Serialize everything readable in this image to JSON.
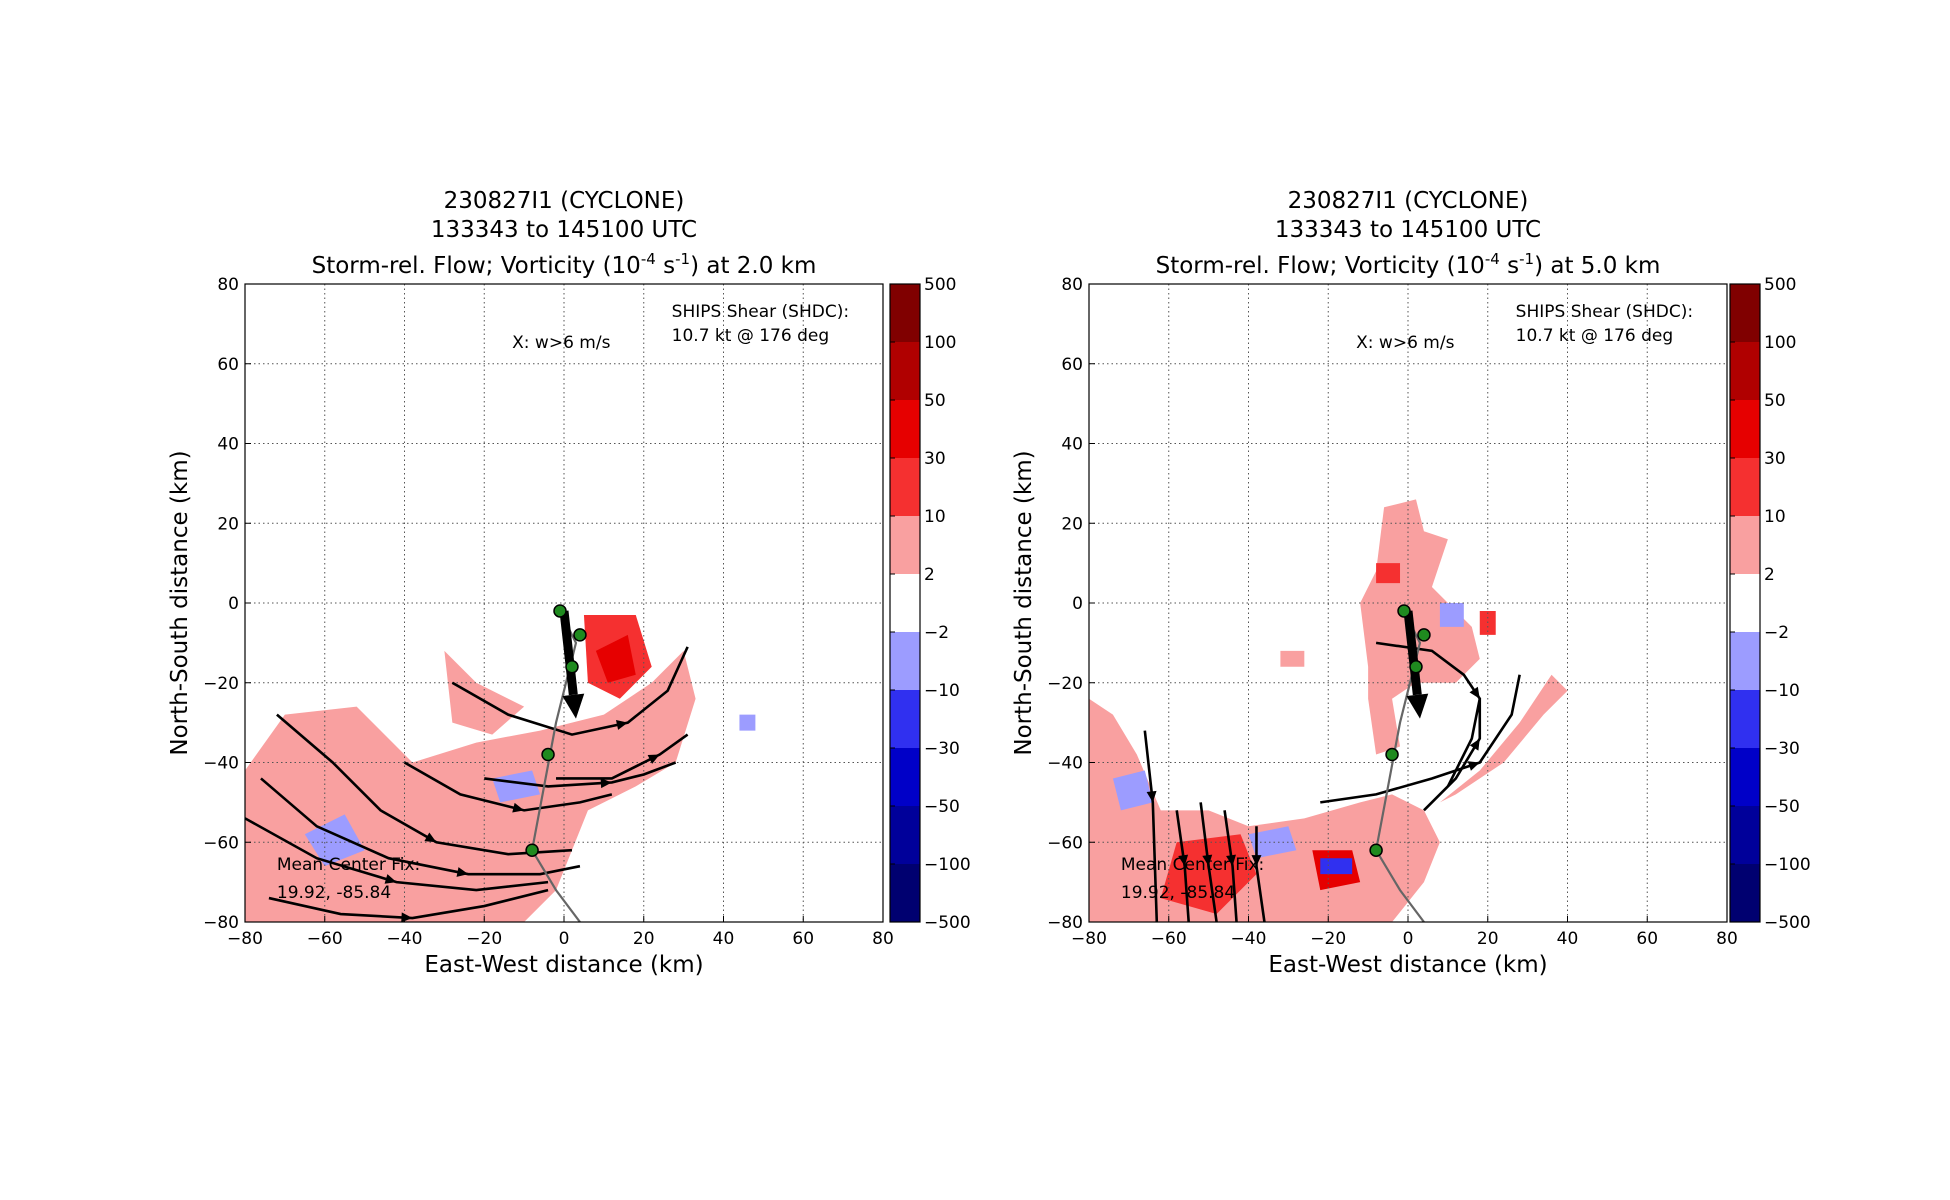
{
  "chart_data": [
    {
      "type": "heatmap",
      "title_lines": [
        "230827I1 (CYCLONE)",
        "133343 to 145100 UTC"
      ],
      "title_line3": {
        "prefix": "Storm-rel. Flow; Vorticity (10",
        "exp1": "-4",
        "mid": " s",
        "exp2": "-1",
        "suffix": ") at 2.0 km"
      },
      "xlabel": "East-West distance (km)",
      "ylabel": "North-South distance (km)",
      "xlim": [
        -80,
        80
      ],
      "ylim": [
        -80,
        80
      ],
      "xticks": [
        -80,
        -60,
        -40,
        -20,
        0,
        20,
        40,
        60,
        80
      ],
      "yticks": [
        -80,
        -60,
        -40,
        -20,
        0,
        20,
        40,
        60,
        80
      ],
      "grid": true,
      "annotations": {
        "w_marker": "X: w>6 m/s",
        "shear_title": "SHIPS Shear (SHDC):",
        "shear_value": "10.7 kt @ 176 deg",
        "center_title": "Mean Center Fix:",
        "center_value": "19.92, -85.84"
      },
      "vorticity_regions": [
        {
          "level": "2 to 10",
          "color": "#f9a0a0",
          "points": [
            [
              -80,
              -42
            ],
            [
              -70,
              -28
            ],
            [
              -52,
              -26
            ],
            [
              -38,
              -40
            ],
            [
              -22,
              -35
            ],
            [
              -6,
              -32
            ],
            [
              10,
              -28
            ],
            [
              22,
              -20
            ],
            [
              30,
              -12
            ],
            [
              33,
              -24
            ],
            [
              28,
              -40
            ],
            [
              18,
              -46
            ],
            [
              6,
              -52
            ],
            [
              -2,
              -72
            ],
            [
              -10,
              -80
            ],
            [
              -80,
              -80
            ]
          ]
        },
        {
          "level": "2 to 10",
          "color": "#f9a0a0",
          "points": [
            [
              -22,
              -20
            ],
            [
              -30,
              -12
            ],
            [
              -28,
              -30
            ],
            [
              -18,
              -33
            ],
            [
              -10,
              -26
            ]
          ]
        },
        {
          "level": "10 to 30",
          "color": "#f53030",
          "points": [
            [
              5,
              -3
            ],
            [
              18,
              -3
            ],
            [
              22,
              -16
            ],
            [
              14,
              -24
            ],
            [
              6,
              -20
            ]
          ]
        },
        {
          "level": "30 to 50",
          "color": "#e60000",
          "points": [
            [
              8,
              -12
            ],
            [
              16,
              -8
            ],
            [
              18,
              -18
            ],
            [
              11,
              -20
            ]
          ]
        },
        {
          "level": "-10 to -2",
          "color": "#9c9cff",
          "points": [
            [
              -65,
              -58
            ],
            [
              -55,
              -53
            ],
            [
              -50,
              -62
            ],
            [
              -60,
              -66
            ]
          ]
        },
        {
          "level": "-10 to -2",
          "color": "#9c9cff",
          "points": [
            [
              -18,
              -44
            ],
            [
              -8,
              -42
            ],
            [
              -6,
              -48
            ],
            [
              -16,
              -50
            ]
          ]
        },
        {
          "level": "-10 to -2",
          "color": "#9c9cff",
          "points": [
            [
              44,
              -28
            ],
            [
              48,
              -28
            ],
            [
              48,
              -32
            ],
            [
              44,
              -32
            ]
          ]
        }
      ],
      "streamlines": [
        [
          [
            -72,
            -28
          ],
          [
            -58,
            -40
          ],
          [
            -46,
            -52
          ],
          [
            -32,
            -60
          ],
          [
            -14,
            -63
          ],
          [
            2,
            -62
          ]
        ],
        [
          [
            -76,
            -44
          ],
          [
            -62,
            -56
          ],
          [
            -44,
            -64
          ],
          [
            -24,
            -68
          ],
          [
            -6,
            -68
          ],
          [
            4,
            -66
          ]
        ],
        [
          [
            -80,
            -54
          ],
          [
            -62,
            -64
          ],
          [
            -42,
            -70
          ],
          [
            -22,
            -72
          ],
          [
            -4,
            -70
          ]
        ],
        [
          [
            -74,
            -74
          ],
          [
            -56,
            -78
          ],
          [
            -38,
            -79
          ],
          [
            -20,
            -76
          ],
          [
            -4,
            -72
          ]
        ],
        [
          [
            -40,
            -40
          ],
          [
            -26,
            -48
          ],
          [
            -10,
            -52
          ],
          [
            4,
            -50
          ],
          [
            12,
            -48
          ]
        ],
        [
          [
            -20,
            -44
          ],
          [
            -4,
            -46
          ],
          [
            12,
            -45
          ],
          [
            20,
            -43
          ],
          [
            28,
            -40
          ]
        ],
        [
          [
            -28,
            -20
          ],
          [
            -14,
            -28
          ],
          [
            2,
            -33
          ],
          [
            16,
            -30
          ],
          [
            26,
            -22
          ],
          [
            31,
            -11
          ]
        ],
        [
          [
            -2,
            -44
          ],
          [
            12,
            -44
          ],
          [
            24,
            -38
          ],
          [
            31,
            -33
          ]
        ]
      ],
      "track_points": [
        [
          -1,
          -2
        ],
        [
          4,
          -8
        ],
        [
          2,
          -16
        ],
        [
          -4,
          -38
        ],
        [
          -8,
          -62
        ]
      ],
      "track_line": [
        [
          -1,
          -2
        ],
        [
          3,
          -10
        ],
        [
          -2,
          -30
        ],
        [
          -8,
          -62
        ],
        [
          -2,
          -72
        ],
        [
          4,
          -80
        ]
      ],
      "shear_vector": {
        "from": [
          0,
          -2
        ],
        "to": [
          3,
          -29
        ]
      },
      "colorbar": {
        "labels": [
          "500",
          "100",
          "50",
          "30",
          "10",
          "2",
          "−2",
          "−10",
          "−30",
          "−50",
          "−100",
          "−500"
        ],
        "colors": [
          "#800000",
          "#b00000",
          "#e60000",
          "#f53030",
          "#f9a0a0",
          "#ffffff",
          "#9c9cff",
          "#3030f0",
          "#0000c8",
          "#00009a",
          "#000070"
        ]
      }
    },
    {
      "type": "heatmap",
      "title_lines": [
        "230827I1 (CYCLONE)",
        "133343 to 145100 UTC"
      ],
      "title_line3": {
        "prefix": "Storm-rel. Flow; Vorticity (10",
        "exp1": "-4",
        "mid": " s",
        "exp2": "-1",
        "suffix": ") at 5.0 km"
      },
      "xlabel": "East-West distance (km)",
      "ylabel": "North-South distance (km)",
      "xlim": [
        -80,
        80
      ],
      "ylim": [
        -80,
        80
      ],
      "xticks": [
        -80,
        -60,
        -40,
        -20,
        0,
        20,
        40,
        60,
        80
      ],
      "yticks": [
        -80,
        -60,
        -40,
        -20,
        0,
        20,
        40,
        60,
        80
      ],
      "grid": true,
      "annotations": {
        "w_marker": "X: w>6 m/s",
        "shear_title": "SHIPS Shear (SHDC):",
        "shear_value": "10.7 kt @ 176 deg",
        "center_title": "Mean Center Fix:",
        "center_value": "19.92, -85.84"
      },
      "vorticity_regions": [
        {
          "level": "2 to 10",
          "color": "#f9a0a0",
          "points": [
            [
              -80,
              -24
            ],
            [
              -74,
              -28
            ],
            [
              -68,
              -38
            ],
            [
              -62,
              -52
            ],
            [
              -50,
              -52
            ],
            [
              -40,
              -56
            ],
            [
              -26,
              -54
            ],
            [
              -12,
              -50
            ],
            [
              -4,
              -48
            ],
            [
              4,
              -52
            ],
            [
              8,
              -60
            ],
            [
              4,
              -70
            ],
            [
              -4,
              -80
            ],
            [
              -80,
              -80
            ]
          ]
        },
        {
          "level": "2 to 10",
          "color": "#f9a0a0",
          "points": [
            [
              -10,
              -16
            ],
            [
              -12,
              0
            ],
            [
              -8,
              8
            ],
            [
              -6,
              24
            ],
            [
              2,
              26
            ],
            [
              4,
              18
            ],
            [
              10,
              16
            ],
            [
              6,
              4
            ],
            [
              16,
              -6
            ],
            [
              18,
              -14
            ],
            [
              12,
              -20
            ],
            [
              2,
              -20
            ],
            [
              -4,
              -24
            ],
            [
              -2,
              -36
            ],
            [
              -8,
              -38
            ],
            [
              -10,
              -24
            ]
          ]
        },
        {
          "level": "2 to 10",
          "color": "#f9a0a0",
          "points": [
            [
              8,
              -50
            ],
            [
              18,
              -42
            ],
            [
              28,
              -30
            ],
            [
              36,
              -18
            ],
            [
              40,
              -22
            ],
            [
              34,
              -28
            ],
            [
              24,
              -40
            ],
            [
              12,
              -48
            ]
          ]
        },
        {
          "level": "2 to 10",
          "color": "#f9a0a0",
          "points": [
            [
              -32,
              -12
            ],
            [
              -26,
              -12
            ],
            [
              -26,
              -16
            ],
            [
              -32,
              -16
            ]
          ]
        },
        {
          "level": "10 to 30",
          "color": "#f53030",
          "points": [
            [
              -58,
              -60
            ],
            [
              -42,
              -58
            ],
            [
              -38,
              -68
            ],
            [
              -48,
              -78
            ],
            [
              -62,
              -74
            ]
          ]
        },
        {
          "level": "10 to 30",
          "color": "#f53030",
          "points": [
            [
              -8,
              10
            ],
            [
              -2,
              10
            ],
            [
              -2,
              5
            ],
            [
              -8,
              5
            ]
          ]
        },
        {
          "level": "10 to 30",
          "color": "#f53030",
          "points": [
            [
              18,
              -2
            ],
            [
              22,
              -2
            ],
            [
              22,
              -8
            ],
            [
              18,
              -8
            ]
          ]
        },
        {
          "level": "30 to 50",
          "color": "#e60000",
          "points": [
            [
              -24,
              -62
            ],
            [
              -14,
              -62
            ],
            [
              -12,
              -70
            ],
            [
              -22,
              -72
            ]
          ]
        },
        {
          "level": "-10 to -2",
          "color": "#9c9cff",
          "points": [
            [
              -74,
              -44
            ],
            [
              -66,
              -42
            ],
            [
              -64,
              -50
            ],
            [
              -72,
              -52
            ]
          ]
        },
        {
          "level": "-10 to -2",
          "color": "#9c9cff",
          "points": [
            [
              -40,
              -58
            ],
            [
              -30,
              -56
            ],
            [
              -28,
              -62
            ],
            [
              -38,
              -64
            ]
          ]
        },
        {
          "level": "-10 to -2",
          "color": "#9c9cff",
          "points": [
            [
              8,
              0
            ],
            [
              14,
              0
            ],
            [
              14,
              -6
            ],
            [
              8,
              -6
            ]
          ]
        },
        {
          "level": "-10 to -30",
          "color": "#3030f0",
          "points": [
            [
              -22,
              -64
            ],
            [
              -14,
              -64
            ],
            [
              -14,
              -68
            ],
            [
              -22,
              -68
            ]
          ]
        }
      ],
      "streamlines": [
        [
          [
            -66,
            -32
          ],
          [
            -64,
            -50
          ],
          [
            -63,
            -80
          ]
        ],
        [
          [
            -58,
            -52
          ],
          [
            -56,
            -66
          ],
          [
            -55,
            -80
          ]
        ],
        [
          [
            -52,
            -50
          ],
          [
            -50,
            -66
          ],
          [
            -48,
            -80
          ]
        ],
        [
          [
            -46,
            -52
          ],
          [
            -44,
            -66
          ],
          [
            -43,
            -80
          ]
        ],
        [
          [
            -38,
            -56
          ],
          [
            -38,
            -66
          ],
          [
            -36,
            -80
          ]
        ],
        [
          [
            -22,
            -50
          ],
          [
            -8,
            -48
          ],
          [
            6,
            -44
          ],
          [
            18,
            -40
          ],
          [
            26,
            -28
          ],
          [
            28,
            -18
          ]
        ],
        [
          [
            -8,
            -10
          ],
          [
            6,
            -12
          ],
          [
            14,
            -18
          ],
          [
            18,
            -24
          ],
          [
            16,
            -34
          ],
          [
            10,
            -46
          ]
        ],
        [
          [
            4,
            -52
          ],
          [
            12,
            -44
          ],
          [
            18,
            -34
          ],
          [
            18,
            -24
          ]
        ]
      ],
      "track_points": [
        [
          -1,
          -2
        ],
        [
          4,
          -8
        ],
        [
          2,
          -16
        ],
        [
          -4,
          -38
        ],
        [
          -8,
          -62
        ]
      ],
      "track_line": [
        [
          -1,
          -2
        ],
        [
          3,
          -10
        ],
        [
          -2,
          -30
        ],
        [
          -8,
          -62
        ],
        [
          -2,
          -72
        ],
        [
          4,
          -80
        ]
      ],
      "shear_vector": {
        "from": [
          0,
          -2
        ],
        "to": [
          3,
          -29
        ]
      },
      "colorbar": {
        "labels": [
          "500",
          "100",
          "50",
          "30",
          "10",
          "2",
          "−2",
          "−10",
          "−30",
          "−50",
          "−100",
          "−500"
        ],
        "colors": [
          "#800000",
          "#b00000",
          "#e60000",
          "#f53030",
          "#f9a0a0",
          "#ffffff",
          "#9c9cff",
          "#3030f0",
          "#0000c8",
          "#00009a",
          "#000070"
        ]
      }
    }
  ]
}
